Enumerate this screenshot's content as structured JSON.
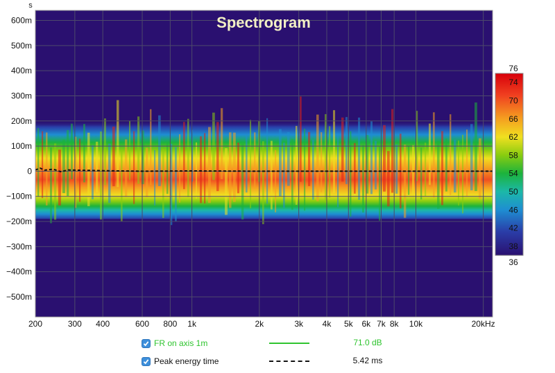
{
  "chart_data": {
    "type": "heatmap",
    "title": "Spectrogram",
    "y_unit_label": "s",
    "x_axis": {
      "scale": "log",
      "range_hz": [
        200,
        22000
      ],
      "tick_values": [
        200,
        300,
        400,
        600,
        800,
        1000,
        2000,
        3000,
        4000,
        5000,
        6000,
        7000,
        8000,
        10000,
        20000
      ],
      "tick_labels": [
        "200",
        "300",
        "400",
        "600",
        "800",
        "1k",
        "2k",
        "3k",
        "4k",
        "5k",
        "6k",
        "7k",
        "8k",
        "10k",
        "20kHz"
      ]
    },
    "y_axis": {
      "range_s": [
        -0.58,
        0.64
      ],
      "tick_values": [
        0.6,
        0.5,
        0.4,
        0.3,
        0.2,
        0.1,
        0,
        -0.1,
        -0.2,
        -0.3,
        -0.4,
        -0.5
      ],
      "tick_labels": [
        "600m",
        "500m",
        "400m",
        "300m",
        "200m",
        "100m",
        "0",
        "−100m",
        "−200m",
        "−300m",
        "−400m",
        "−500m"
      ]
    },
    "colorbar": {
      "range_db": [
        36,
        76
      ],
      "tick_values": [
        76,
        74,
        70,
        66,
        62,
        58,
        54,
        50,
        46,
        42,
        38,
        36
      ],
      "tick_labels": [
        "76",
        "74",
        "70",
        "66",
        "62",
        "58",
        "54",
        "50",
        "46",
        "42",
        "38",
        "36"
      ]
    },
    "energy_band": {
      "center_s": -0.02,
      "peak_half_width_s": 0.07,
      "low_edge_s": -0.19,
      "high_edge_s": 0.2
    },
    "series": [
      {
        "name": "Peak energy time",
        "style": "dashed",
        "points": [
          [
            200,
            0.005
          ],
          [
            210,
            0.012
          ],
          [
            220,
            0.004
          ],
          [
            240,
            0.008
          ],
          [
            260,
            -0.002
          ],
          [
            280,
            0.005
          ],
          [
            300,
            0.004
          ],
          [
            350,
            0.003
          ],
          [
            400,
            0.002
          ],
          [
            600,
            0.0
          ],
          [
            1000,
            0.001
          ],
          [
            2000,
            0.0
          ],
          [
            5000,
            0.0
          ],
          [
            10000,
            0.0
          ],
          [
            20000,
            0.0
          ],
          [
            22000,
            0.0
          ]
        ]
      }
    ],
    "grid": true
  },
  "legend": {
    "items": [
      {
        "label": "FR on axis 1m",
        "value": "71.0 dB",
        "color": "#2ec42e",
        "checked": true
      },
      {
        "label": "Peak energy time",
        "value": "5.42 ms",
        "color": "#111111",
        "checked": true
      }
    ]
  },
  "colors": {
    "background": "#2a1070",
    "grid": "#4d4a6b",
    "title": "#f2f0c4"
  }
}
